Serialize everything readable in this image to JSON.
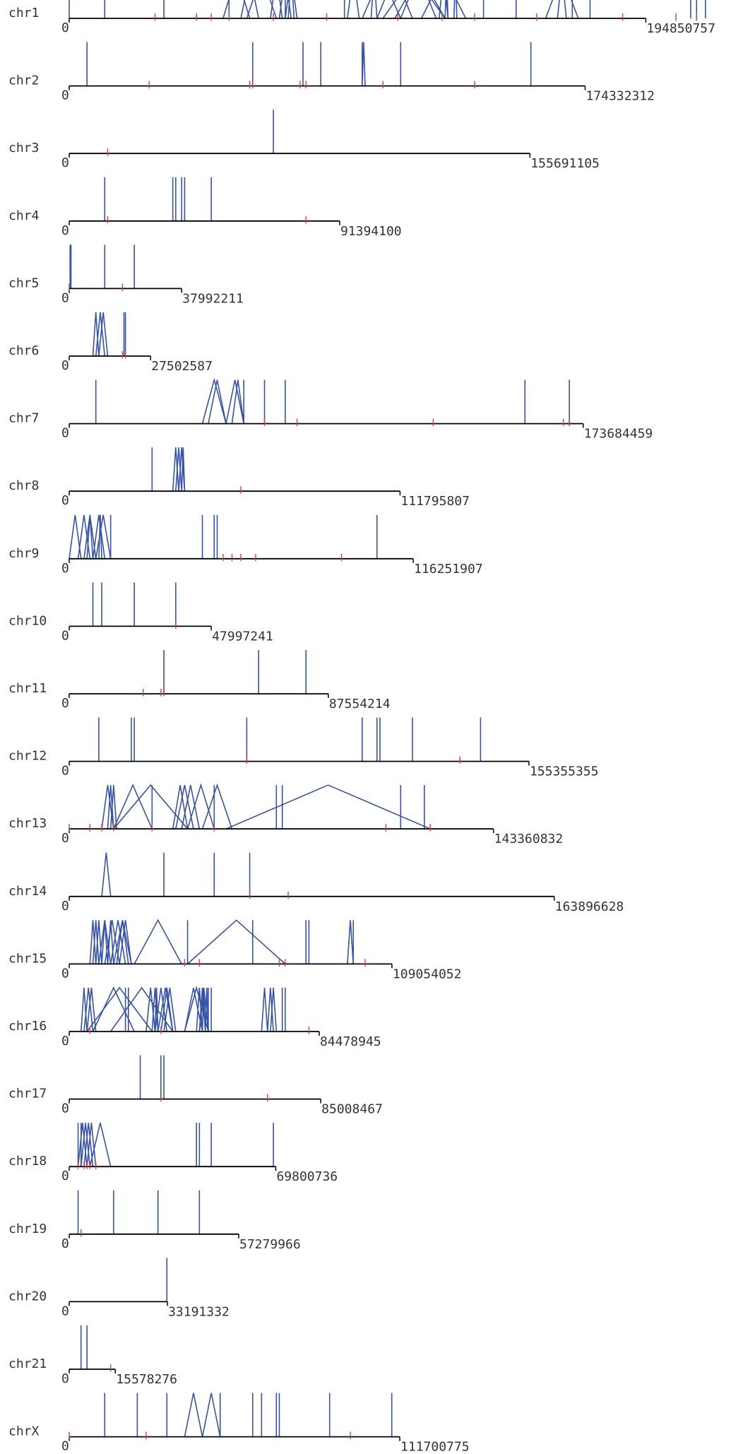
{
  "colors": {
    "axis": "#000000",
    "link": "#3653a8",
    "mark": "#e23a3a",
    "label": "#333333"
  },
  "chart_data": {
    "type": "genome-track",
    "length_unit": "Mb",
    "chromosomes": [
      {
        "name": "chr1",
        "start_label": "0",
        "end_label": "194850757",
        "length": 194.850757,
        "marks": [
          29,
          43,
          48,
          54,
          69,
          87,
          111,
          126,
          137,
          158,
          187,
          205,
          212
        ],
        "links": [
          [
            0,
            0
          ],
          [
            12,
            12
          ],
          [
            32,
            32
          ],
          [
            54,
            54
          ],
          [
            52,
            61
          ],
          [
            58,
            64
          ],
          [
            60,
            70
          ],
          [
            71,
            75
          ],
          [
            73,
            77
          ],
          [
            73,
            73
          ],
          [
            74,
            76
          ],
          [
            68,
            72
          ],
          [
            93,
            93
          ],
          [
            94,
            98
          ],
          [
            99,
            112
          ],
          [
            104,
            116
          ],
          [
            102,
            104
          ],
          [
            112,
            124
          ],
          [
            106,
            127
          ],
          [
            110,
            127
          ],
          [
            119,
            134
          ],
          [
            125,
            128
          ],
          [
            128,
            127
          ],
          [
            131,
            130
          ],
          [
            140,
            140
          ],
          [
            151,
            151
          ],
          [
            161,
            172
          ],
          [
            165,
            168
          ],
          [
            170,
            170
          ],
          [
            176,
            176
          ],
          [
            210,
            210
          ],
          [
            212,
            212
          ],
          [
            215,
            215
          ]
        ]
      },
      {
        "name": "chr2",
        "start_label": "0",
        "end_label": "174332312",
        "length": 174.332312,
        "marks": [
          27,
          61,
          62,
          78,
          80,
          106,
          137
        ],
        "links": [
          [
            6,
            6
          ],
          [
            62,
            62
          ],
          [
            79,
            79
          ],
          [
            85,
            85
          ],
          [
            99,
            99
          ],
          [
            99,
            100
          ],
          [
            112,
            112
          ],
          [
            156,
            156
          ]
        ]
      },
      {
        "name": "chr3",
        "start_label": "0",
        "end_label": "155691105",
        "length": 155.691105,
        "marks": [
          13
        ],
        "links": [
          [
            69,
            69
          ]
        ]
      },
      {
        "name": "chr4",
        "start_label": "0",
        "end_label": "91394100",
        "length": 91.3941,
        "marks": [
          13,
          80
        ],
        "links": [
          [
            12,
            12
          ],
          [
            35,
            35
          ],
          [
            36,
            36
          ],
          [
            38,
            38
          ],
          [
            39,
            39
          ],
          [
            48,
            48
          ]
        ]
      },
      {
        "name": "chr5",
        "start_label": "0",
        "end_label": "37992211",
        "length": 37.992211,
        "marks": [
          0,
          18
        ],
        "links": [
          [
            0.3,
            0.3
          ],
          [
            0.6,
            0.6
          ],
          [
            12,
            12
          ],
          [
            22,
            22
          ]
        ]
      },
      {
        "name": "chr6",
        "start_label": "0",
        "end_label": "27502587",
        "length": 27.502587,
        "marks": [
          18,
          19
        ],
        "links": [
          [
            8,
            10
          ],
          [
            9,
            12
          ],
          [
            10,
            13
          ],
          [
            19,
            19
          ],
          [
            18.5,
            18.5
          ]
        ]
      },
      {
        "name": "chr7",
        "start_label": "0",
        "end_label": "173684459",
        "length": 173.684459,
        "marks": [
          66,
          77,
          123,
          167,
          169
        ],
        "links": [
          [
            9,
            9
          ],
          [
            45,
            53
          ],
          [
            47,
            53
          ],
          [
            53,
            59
          ],
          [
            55,
            59
          ],
          [
            59,
            59
          ],
          [
            66,
            66
          ],
          [
            73,
            73
          ],
          [
            154,
            154
          ],
          [
            169,
            169
          ]
        ]
      },
      {
        "name": "chr8",
        "start_label": "0",
        "end_label": "111795807",
        "length": 111.795807,
        "marks": [
          58
        ],
        "links": [
          [
            28,
            28
          ],
          [
            35,
            37
          ],
          [
            36,
            38
          ],
          [
            37,
            39
          ],
          [
            38,
            39
          ]
        ]
      },
      {
        "name": "chr9",
        "start_label": "0",
        "end_label": "116251907",
        "length": 116.251907,
        "marks": [
          52,
          55,
          58,
          63,
          92
        ],
        "links": [
          [
            0,
            4
          ],
          [
            3,
            7
          ],
          [
            5,
            9
          ],
          [
            6,
            8
          ],
          [
            8,
            12
          ],
          [
            9,
            14
          ],
          [
            10,
            11
          ],
          [
            14,
            14
          ],
          [
            45,
            45
          ],
          [
            49,
            49
          ],
          [
            50,
            50
          ],
          [
            104,
            104
          ]
        ]
      },
      {
        "name": "chr10",
        "start_label": "0",
        "end_label": "47997241",
        "length": 47.997241,
        "marks": [
          36
        ],
        "links": [
          [
            8,
            8
          ],
          [
            11,
            11
          ],
          [
            22,
            22
          ],
          [
            36,
            36
          ]
        ]
      },
      {
        "name": "chr11",
        "start_label": "0",
        "end_label": "87554214",
        "length": 87.554214,
        "marks": [
          25,
          31,
          32
        ],
        "links": [
          [
            32,
            32
          ],
          [
            64,
            64
          ],
          [
            80,
            80
          ]
        ]
      },
      {
        "name": "chr12",
        "start_label": "0",
        "end_label": "155355355",
        "length": 155.355355,
        "marks": [
          60,
          132
        ],
        "links": [
          [
            10,
            10
          ],
          [
            21,
            21
          ],
          [
            22,
            22
          ],
          [
            60,
            60
          ],
          [
            99,
            99
          ],
          [
            104,
            104
          ],
          [
            105,
            105
          ],
          [
            116,
            116
          ],
          [
            139,
            139
          ]
        ]
      },
      {
        "name": "chr13",
        "start_label": "0",
        "end_label": "143360832",
        "length": 143.360832,
        "marks": [
          0,
          7,
          11,
          15,
          28,
          49,
          107,
          122
        ],
        "links": [
          [
            11,
            15
          ],
          [
            13,
            15
          ],
          [
            14,
            16
          ],
          [
            15,
            28
          ],
          [
            28,
            28
          ],
          [
            15,
            40
          ],
          [
            35,
            40
          ],
          [
            36,
            42
          ],
          [
            38,
            44
          ],
          [
            40,
            49
          ],
          [
            45,
            55
          ],
          [
            49,
            49
          ],
          [
            70,
            70
          ],
          [
            72,
            72
          ],
          [
            53,
            122
          ],
          [
            112,
            112
          ],
          [
            120,
            120
          ]
        ]
      },
      {
        "name": "chr14",
        "start_label": "0",
        "end_label": "163896628",
        "length": 163.896628,
        "marks": [
          61,
          74
        ],
        "links": [
          [
            11,
            14
          ],
          [
            32,
            32
          ],
          [
            49,
            49
          ],
          [
            61,
            61
          ]
        ]
      },
      {
        "name": "chr15",
        "start_label": "0",
        "end_label": "109054052",
        "length": 109.054052,
        "marks": [
          39,
          44,
          71,
          73,
          100
        ],
        "links": [
          [
            7,
            9
          ],
          [
            8,
            10
          ],
          [
            9,
            11
          ],
          [
            10,
            14
          ],
          [
            11,
            13
          ],
          [
            12,
            17
          ],
          [
            13,
            15
          ],
          [
            14,
            19
          ],
          [
            15,
            21
          ],
          [
            16,
            20
          ],
          [
            17,
            21
          ],
          [
            22,
            38
          ],
          [
            40,
            40
          ],
          [
            40,
            73
          ],
          [
            62,
            62
          ],
          [
            80,
            80
          ],
          [
            81,
            81
          ],
          [
            94,
            96
          ],
          [
            96,
            96
          ]
        ]
      },
      {
        "name": "chr16",
        "start_label": "0",
        "end_label": "84478945",
        "length": 84.478945,
        "marks": [
          7,
          31,
          81
        ],
        "links": [
          [
            4,
            6
          ],
          [
            5,
            8
          ],
          [
            6,
            9
          ],
          [
            6,
            28
          ],
          [
            8,
            22
          ],
          [
            14,
            35
          ],
          [
            19,
            19
          ],
          [
            20,
            20
          ],
          [
            26,
            29
          ],
          [
            28,
            30
          ],
          [
            29,
            30
          ],
          [
            29,
            33
          ],
          [
            30,
            35
          ],
          [
            31,
            35
          ],
          [
            32,
            36
          ],
          [
            39,
            47
          ],
          [
            39,
            45
          ],
          [
            43,
            45
          ],
          [
            44,
            46
          ],
          [
            44,
            47
          ],
          [
            45,
            46
          ],
          [
            46,
            47
          ],
          [
            47,
            47
          ],
          [
            48,
            48
          ],
          [
            65,
            67
          ],
          [
            67,
            69
          ],
          [
            68,
            70
          ],
          [
            72,
            72
          ],
          [
            73,
            73
          ]
        ]
      },
      {
        "name": "chr17",
        "start_label": "0",
        "end_label": "85008467",
        "length": 85.008467,
        "marks": [
          31,
          67
        ],
        "links": [
          [
            24,
            24
          ],
          [
            31,
            31
          ],
          [
            32,
            32
          ]
        ]
      },
      {
        "name": "chr18",
        "start_label": "0",
        "end_label": "69800736",
        "length": 69.800736,
        "marks": [
          3,
          5,
          6,
          7,
          9
        ],
        "links": [
          [
            3,
            3
          ],
          [
            3,
            6
          ],
          [
            4,
            4
          ],
          [
            4,
            7
          ],
          [
            5,
            8
          ],
          [
            6,
            9
          ],
          [
            7,
            14
          ],
          [
            43,
            43
          ],
          [
            44,
            44
          ],
          [
            48,
            48
          ],
          [
            69,
            69
          ]
        ]
      },
      {
        "name": "chr19",
        "start_label": "0",
        "end_label": "57279966",
        "length": 57.279966,
        "marks": [
          4
        ],
        "links": [
          [
            3,
            3
          ],
          [
            15,
            15
          ],
          [
            30,
            30
          ],
          [
            44,
            44
          ]
        ]
      },
      {
        "name": "chr20",
        "start_label": "0",
        "end_label": "33191332",
        "length": 33.191332,
        "marks": [],
        "links": [
          [
            33,
            33
          ]
        ]
      },
      {
        "name": "chr21",
        "start_label": "0",
        "end_label": "15578276",
        "length": 15.578276,
        "marks": [
          14
        ],
        "links": [
          [
            4,
            4
          ],
          [
            6,
            6
          ]
        ]
      },
      {
        "name": "chrX",
        "start_label": "0",
        "end_label": "111700775",
        "length": 111.700775,
        "marks": [
          0,
          26,
          95
        ],
        "links": [
          [
            12,
            12
          ],
          [
            23,
            23
          ],
          [
            33,
            33
          ],
          [
            39,
            45
          ],
          [
            45,
            51
          ],
          [
            51,
            51
          ],
          [
            62,
            62
          ],
          [
            65,
            65
          ],
          [
            70,
            70
          ],
          [
            71,
            71
          ],
          [
            88,
            88
          ],
          [
            109,
            109
          ]
        ]
      }
    ]
  }
}
